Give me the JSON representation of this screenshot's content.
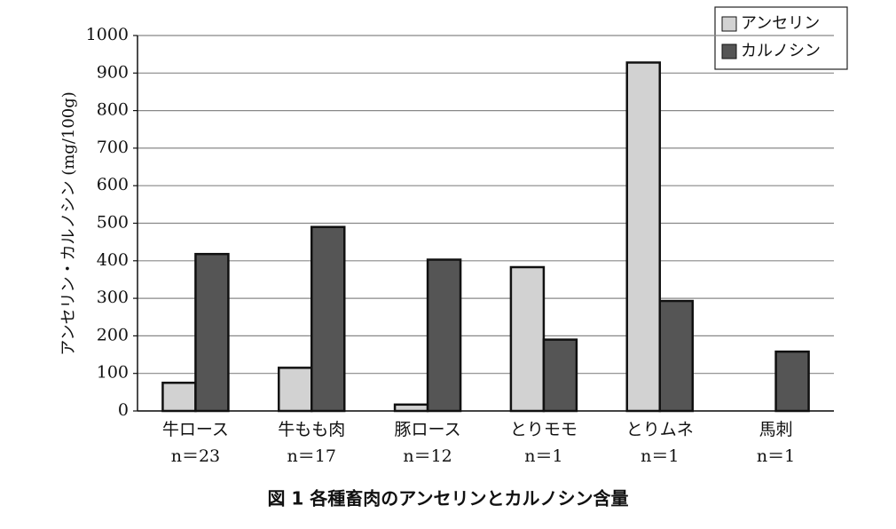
{
  "chart_data": {
    "type": "bar",
    "title": "図 1 各種畜肉のアンセリンとカルノシン含量",
    "y_label": "アンセリン・カルノシン (mg/100g)",
    "categories": [
      "牛ロース",
      "牛もも肉",
      "豚ロース",
      "とりモモ",
      "とりムネ",
      "馬刺"
    ],
    "sample_sizes": [
      "n＝23",
      "n＝17",
      "n＝12",
      "n＝1",
      "n＝1",
      "n＝1"
    ],
    "series": [
      {
        "name": "アンセリン",
        "color": "#d2d2d2",
        "values": [
          75,
          115,
          17,
          383,
          928,
          null
        ]
      },
      {
        "name": "カルノシン",
        "color": "#555555",
        "values": [
          418,
          490,
          403,
          190,
          293,
          158
        ]
      }
    ],
    "ylim": [
      0,
      1000
    ],
    "yticks": [
      0,
      100,
      200,
      300,
      400,
      500,
      600,
      700,
      800,
      900,
      1000
    ],
    "grid": true,
    "legend": "top-right"
  }
}
